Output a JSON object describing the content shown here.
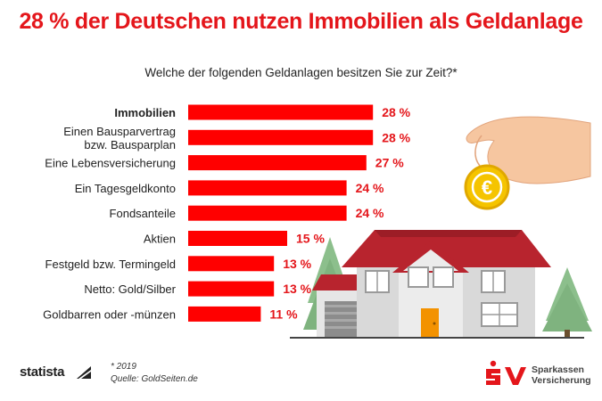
{
  "header": {
    "title": "28 % der Deutschen nutzen Immobilien als Geldanlage",
    "subtitle": "Welche der folgenden Geldanlagen besitzen Sie zur Zeit?*"
  },
  "chart_data": {
    "type": "bar",
    "orientation": "horizontal",
    "categories": [
      [
        "Immobilien"
      ],
      [
        "Einen Bausparvertrag",
        "bzw. Bausparplan"
      ],
      [
        "Eine Lebensversicherung"
      ],
      [
        "Ein Tagesgeldkonto"
      ],
      [
        "Fondsanteile"
      ],
      [
        "Aktien"
      ],
      [
        "Festgeld bzw. Termingeld"
      ],
      [
        "Netto: Gold/Silber"
      ],
      [
        "Goldbarren oder -münzen"
      ]
    ],
    "values": [
      28,
      28,
      27,
      24,
      24,
      15,
      13,
      13,
      11
    ],
    "value_labels": [
      "28 %",
      "28 %",
      "27 %",
      "24 %",
      "24 %",
      "15 %",
      "13 %",
      "13 %",
      "11 %"
    ],
    "bold_categories": [
      0
    ],
    "bar_color": "#ff0000",
    "label_color": "#e4161b",
    "unit": "%",
    "grid": false,
    "legend": "none"
  },
  "footer": {
    "source_brand": "statista",
    "footnote": "* 2019",
    "source": "Quelle: GoldSeiten.de",
    "brand_line1": "Sparkassen",
    "brand_line2": "Versicherung"
  },
  "illustration": {
    "coin_symbol": "€",
    "subject": "house-with-hand-and-coin"
  },
  "colors": {
    "accent": "#e4161b",
    "roof": "#b8242e",
    "coin": "#f5c400",
    "door": "#f39200",
    "tree": "#7fb37f"
  }
}
